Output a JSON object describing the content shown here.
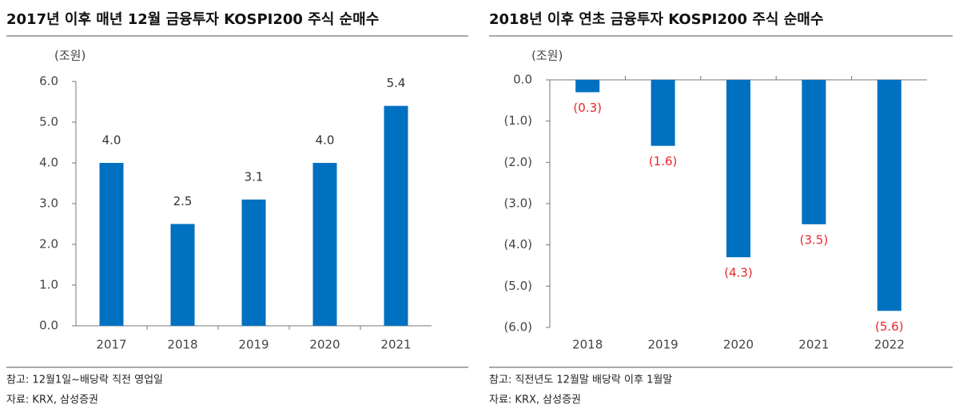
{
  "chart_data": [
    {
      "type": "bar",
      "title": "2017년 이후 매년 12월 금융투자 KOSPI200 주식 순매수",
      "unit_label": "(조원)",
      "categories": [
        "2017",
        "2018",
        "2019",
        "2020",
        "2021"
      ],
      "values": [
        4.0,
        2.5,
        3.1,
        4.0,
        5.4
      ],
      "value_labels": [
        "4.0",
        "2.5",
        "3.1",
        "4.0",
        "5.4"
      ],
      "color": "#0070c0",
      "value_label_color": "#333333",
      "ylim": [
        0,
        6
      ],
      "yticks": [
        {
          "value": 0,
          "label": "0.0"
        },
        {
          "value": 1,
          "label": "1.0"
        },
        {
          "value": 2,
          "label": "2.0"
        },
        {
          "value": 3,
          "label": "3.0"
        },
        {
          "value": 4,
          "label": "4.0"
        },
        {
          "value": 5,
          "label": "5.0"
        },
        {
          "value": 6,
          "label": "6.0"
        }
      ],
      "note": "참고: 12월1일~배당락 직전 영업일",
      "source": "자료: KRX, 삼성증권"
    },
    {
      "type": "bar",
      "title": "2018년 이후 연초 금융투자 KOSPI200 주식 순매수",
      "unit_label": "(조원)",
      "categories": [
        "2018",
        "2019",
        "2020",
        "2021",
        "2022"
      ],
      "values": [
        -0.3,
        -1.6,
        -4.3,
        -3.5,
        -5.6
      ],
      "value_labels": [
        "(0.3)",
        "(1.6)",
        "(4.3)",
        "(3.5)",
        "(5.6)"
      ],
      "color": "#0070c0",
      "value_label_color": "#e8262a",
      "ylim": [
        -6,
        0
      ],
      "yticks": [
        {
          "value": 0,
          "label": "0.0"
        },
        {
          "value": -1,
          "label": "(1.0)"
        },
        {
          "value": -2,
          "label": "(2.0)"
        },
        {
          "value": -3,
          "label": "(3.0)"
        },
        {
          "value": -4,
          "label": "(4.0)"
        },
        {
          "value": -5,
          "label": "(5.0)"
        },
        {
          "value": -6,
          "label": "(6.0)"
        }
      ],
      "note": "참고: 직전년도 12월말 배당락 이후 1월말",
      "source": "자료: KRX, 삼성증권"
    }
  ]
}
